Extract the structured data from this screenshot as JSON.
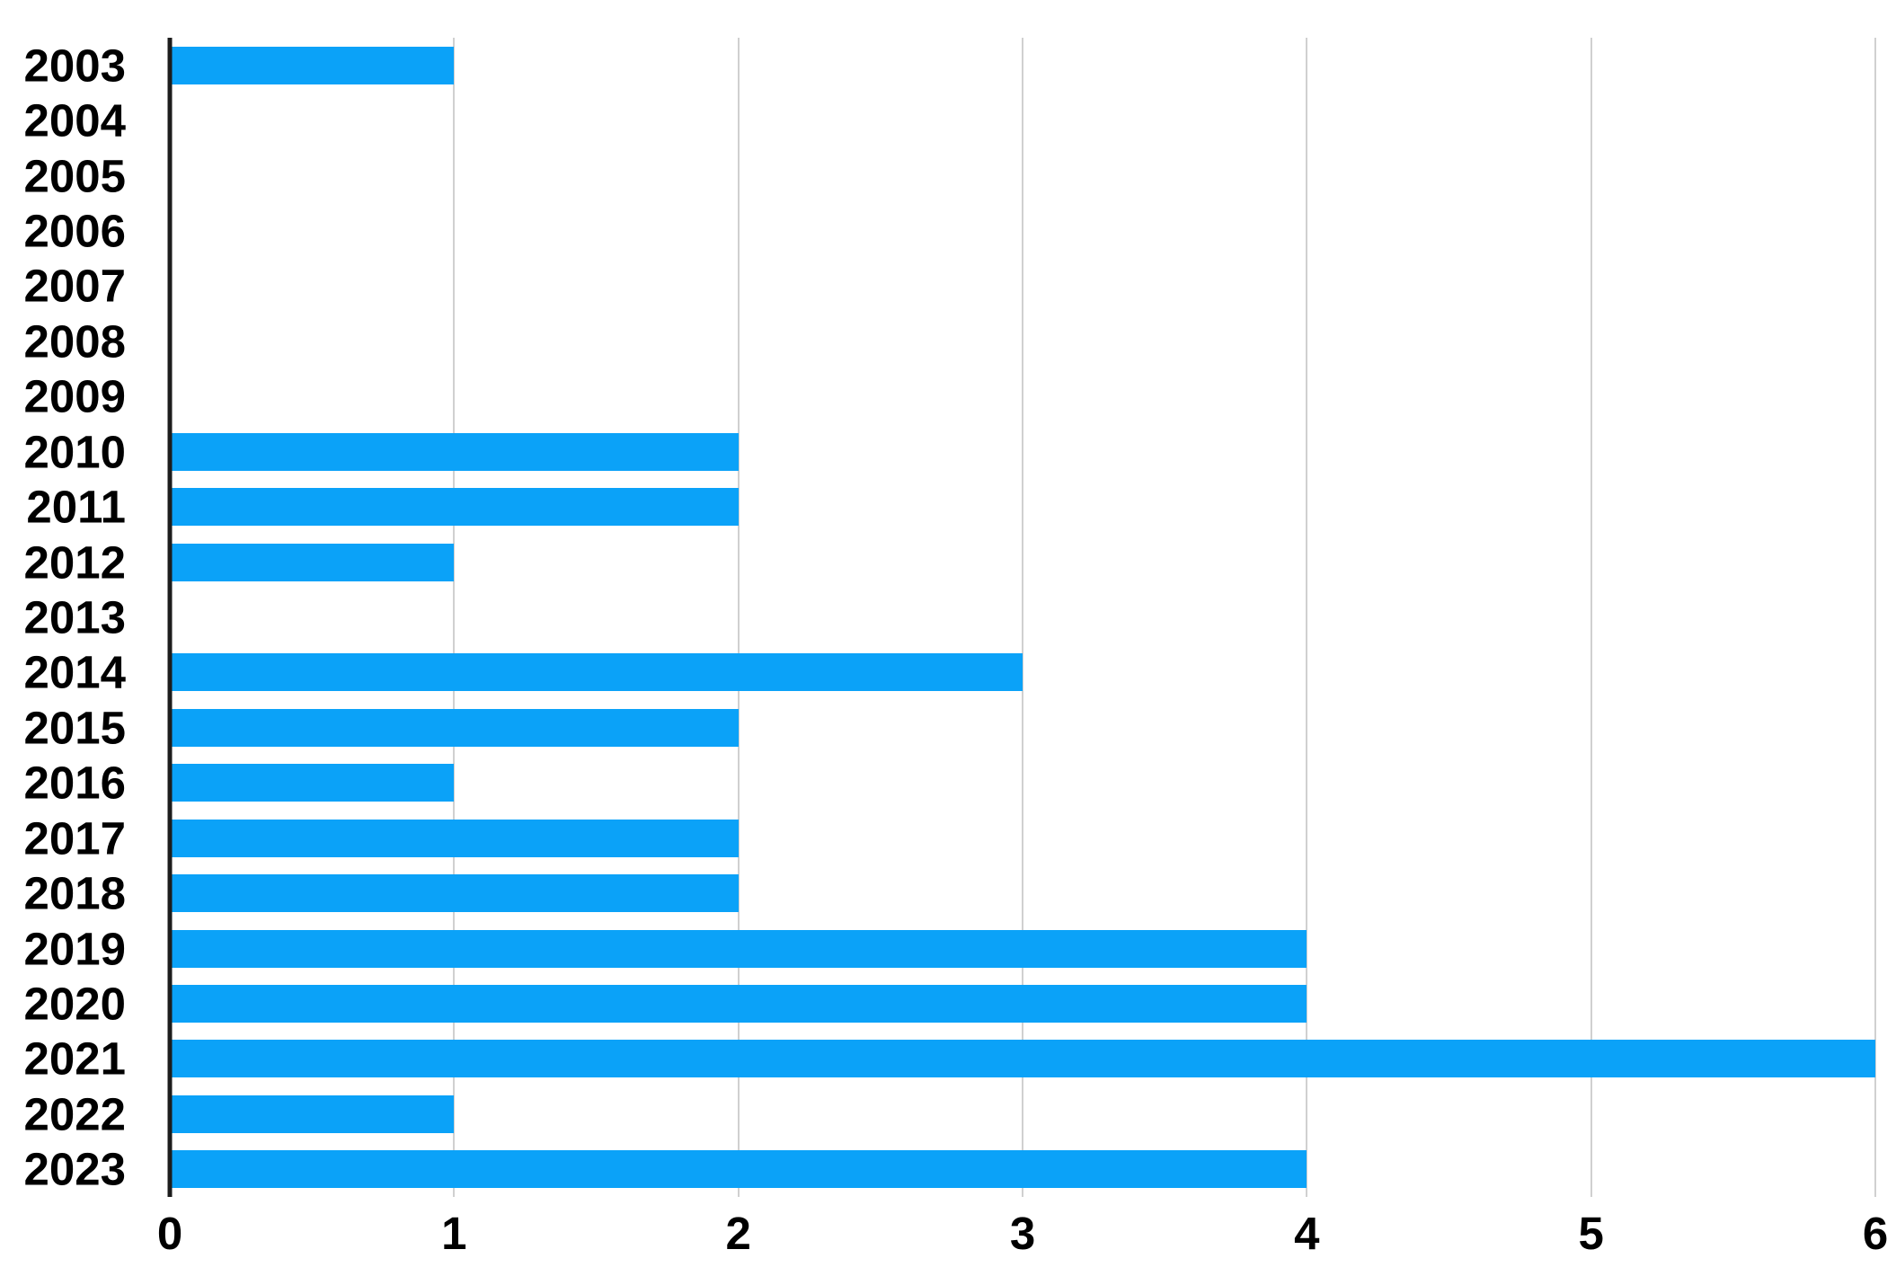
{
  "chart_data": {
    "type": "bar",
    "orientation": "horizontal",
    "title": "",
    "categories": [
      "2003",
      "2004",
      "2005",
      "2006",
      "2007",
      "2008",
      "2009",
      "2010",
      "2011",
      "2012",
      "2013",
      "2014",
      "2015",
      "2016",
      "2017",
      "2018",
      "2019",
      "2020",
      "2021",
      "2022",
      "2023"
    ],
    "values": [
      1,
      0,
      0,
      0,
      0,
      0,
      0,
      2,
      2,
      1,
      0,
      3,
      2,
      1,
      2,
      2,
      4,
      4,
      6,
      1,
      4
    ],
    "x_ticks": [
      "0",
      "1",
      "2",
      "3",
      "4",
      "5",
      "6"
    ],
    "xlim": [
      0,
      6
    ],
    "grid": true,
    "legend": false,
    "colors": {
      "bar": "#0ba2f8",
      "axis_line": "#1c1c1c",
      "gridline": "#d0d0d0",
      "label": "#000000",
      "background": "#ffffff"
    }
  }
}
